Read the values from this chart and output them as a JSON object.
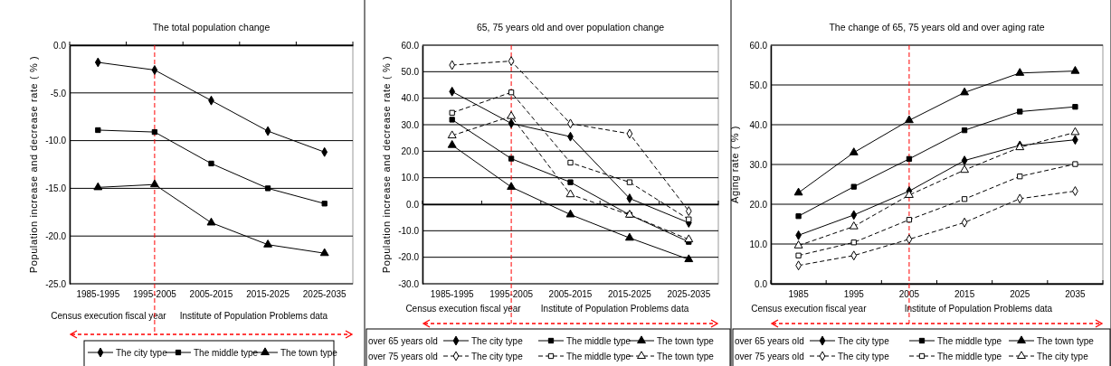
{
  "chart_data": [
    {
      "type": "line",
      "title": "The total population change",
      "ylabel": "Population increase and decrease rate ( % )",
      "categories": [
        "1985-1995",
        "1995-2005",
        "2005-2015",
        "2015-2025",
        "2025-2035"
      ],
      "series": [
        {
          "name": "The city type",
          "color": "#000000",
          "marker": "diamond",
          "line_style": "solid",
          "values": [
            -1.8,
            -2.6,
            -5.8,
            -9.0,
            -11.2
          ]
        },
        {
          "name": "The middle type",
          "color": "#000000",
          "marker": "square",
          "line_style": "solid",
          "values": [
            -8.9,
            -9.1,
            -12.4,
            -15.0,
            -16.6
          ]
        },
        {
          "name": "The town type",
          "color": "#000000",
          "marker": "triangle",
          "line_style": "solid",
          "values": [
            -14.9,
            -14.6,
            -18.6,
            -20.9,
            -21.8
          ]
        }
      ],
      "ylim": [
        -25,
        0
      ],
      "yticks": [
        {
          "value": -25,
          "label": "-25.0"
        },
        {
          "value": -20,
          "label": "-20.0"
        },
        {
          "value": -15,
          "label": "-15.0"
        },
        {
          "value": -10,
          "label": "-10.0"
        },
        {
          "value": -5,
          "label": "-5.0"
        },
        {
          "value": 0,
          "label": "0.0"
        }
      ],
      "grid": "y",
      "legend": "bottom",
      "ref_lines": [
        {
          "axis": "x",
          "value": "1995-2005",
          "color": "#ff0000",
          "line_style": "dashed"
        }
      ],
      "annotations": [
        "Census execution fiscal year",
        "Institute of Population Problems data"
      ]
    },
    {
      "type": "line",
      "title": "65, 75 years old and over population change",
      "ylabel": "Population increase and decrease rate ( % )",
      "categories": [
        "1985-1995",
        "1995-2005",
        "2005-2015",
        "2015-2025",
        "2025-2035"
      ],
      "series": [
        {
          "name": "The city type",
          "color": "#000000",
          "marker": "diamond",
          "line_style": "solid",
          "values": [
            42.5,
            30.5,
            25.5,
            2.2,
            -7.0
          ]
        },
        {
          "name": "The middle type",
          "color": "#000000",
          "marker": "square",
          "line_style": "solid",
          "values": [
            31.9,
            17.2,
            8.3,
            -4.0,
            -14.2
          ]
        },
        {
          "name": "The town type",
          "color": "#000000",
          "marker": "triangle",
          "line_style": "solid",
          "values": [
            22.3,
            6.5,
            -3.9,
            -12.7,
            -20.8
          ]
        },
        {
          "name": "The city type",
          "color": "#000000",
          "marker": "diamond",
          "line_style": "dashed",
          "values": [
            52.5,
            54.0,
            30.4,
            26.6,
            -2.6
          ]
        },
        {
          "name": "The middle type",
          "color": "#000000",
          "marker": "square",
          "line_style": "dashed",
          "values": [
            34.5,
            42.2,
            15.7,
            8.3,
            -5.7
          ]
        },
        {
          "name": "The town type",
          "color": "#000000",
          "marker": "triangle",
          "line_style": "dashed",
          "values": [
            25.9,
            33.2,
            3.7,
            -4.0,
            -13.3
          ]
        }
      ],
      "ylim": [
        -30,
        60
      ],
      "yticks": [
        {
          "value": -30,
          "label": "-30.0"
        },
        {
          "value": -20,
          "label": "-20.0"
        },
        {
          "value": -10,
          "label": "-10.0"
        },
        {
          "value": 0,
          "label": "0.0"
        },
        {
          "value": 10,
          "label": "10.0"
        },
        {
          "value": 20,
          "label": "20.0"
        },
        {
          "value": 30,
          "label": "30.0"
        },
        {
          "value": 40,
          "label": "40.0"
        },
        {
          "value": 50,
          "label": "50.0"
        },
        {
          "value": 60,
          "label": "60.0"
        }
      ],
      "grid": "y",
      "legend": "bottom",
      "ref_lines": [
        {
          "axis": "x",
          "value": "1995-2005",
          "color": "#ff0000",
          "line_style": "dashed"
        }
      ],
      "annotations": [
        "Census execution fiscal year",
        "Institute of Population Problems data",
        "over 65 years old",
        "over 75 years old"
      ]
    },
    {
      "type": "line",
      "title": "The change of 65, 75 years old and over aging rate",
      "ylabel": "Aging rate ( % )",
      "categories": [
        "1985",
        "1995",
        "2005",
        "2015",
        "2025",
        "2035"
      ],
      "series": [
        {
          "name": "The city type",
          "color": "#000000",
          "marker": "diamond",
          "line_style": "solid",
          "values": [
            12.2,
            17.3,
            23.3,
            31.0,
            34.8,
            36.2
          ]
        },
        {
          "name": "The middle type",
          "color": "#000000",
          "marker": "square",
          "line_style": "solid",
          "values": [
            17.0,
            24.4,
            31.4,
            38.6,
            43.3,
            44.5
          ]
        },
        {
          "name": "The town type",
          "color": "#000000",
          "marker": "triangle",
          "line_style": "solid",
          "values": [
            22.9,
            33.0,
            41.1,
            48.1,
            53.0,
            53.5
          ]
        },
        {
          "name": "The city type",
          "color": "#000000",
          "marker": "diamond",
          "line_style": "dashed",
          "values": [
            4.6,
            7.1,
            11.2,
            15.4,
            21.4,
            23.3
          ]
        },
        {
          "name": "The middle type",
          "color": "#000000",
          "marker": "square",
          "line_style": "dashed",
          "values": [
            7.1,
            10.4,
            16.1,
            21.3,
            27.0,
            30.1
          ]
        },
        {
          "name": "The city type",
          "color": "#000000",
          "marker": "triangle",
          "line_style": "dashed",
          "values": [
            9.6,
            14.4,
            22.3,
            28.6,
            34.3,
            38.1
          ]
        }
      ],
      "ylim": [
        0,
        60
      ],
      "yticks": [
        {
          "value": 0,
          "label": "0.0"
        },
        {
          "value": 10,
          "label": "10.0"
        },
        {
          "value": 20,
          "label": "20.0"
        },
        {
          "value": 30,
          "label": "30.0"
        },
        {
          "value": 40,
          "label": "40.0"
        },
        {
          "value": 50,
          "label": "50.0"
        },
        {
          "value": 60,
          "label": "60.0"
        }
      ],
      "grid": "y",
      "legend": "bottom",
      "ref_lines": [
        {
          "axis": "x",
          "value": "2005",
          "color": "#ff0000",
          "line_style": "dashed"
        }
      ],
      "annotations": [
        "Census execution fiscal year",
        "Institute of Population Problems data",
        "over 65 years old",
        "over 75 years old"
      ]
    }
  ]
}
